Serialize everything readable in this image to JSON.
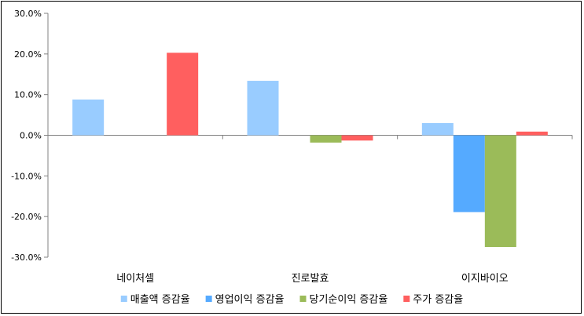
{
  "chart_data": {
    "type": "bar",
    "categories": [
      "네이처셀",
      "진로발효",
      "이지바이오"
    ],
    "series": [
      {
        "name": "매출액 증감율",
        "values": [
          8.8,
          13.4,
          3.0
        ],
        "color": "#99ccff"
      },
      {
        "name": "영업이익 증감율",
        "values": [
          0.0,
          0.0,
          -18.9
        ],
        "color": "#55aaff"
      },
      {
        "name": "당기순이익 증감율",
        "values": [
          0.0,
          -1.8,
          -27.5
        ],
        "color": "#9bbb59"
      },
      {
        "name": "주가 증감율",
        "values": [
          20.3,
          -1.3,
          0.9
        ],
        "color": "#ff5f5f"
      }
    ],
    "ylim": [
      -30,
      30
    ],
    "yticks": [
      "30.0%",
      "20.0%",
      "10.0%",
      "0.0%",
      "-10.0%",
      "-20.0%",
      "-30.0%"
    ],
    "ytick_values": [
      30,
      20,
      10,
      0,
      -10,
      -20,
      -30
    ],
    "grid": false,
    "legend": "bottom"
  }
}
